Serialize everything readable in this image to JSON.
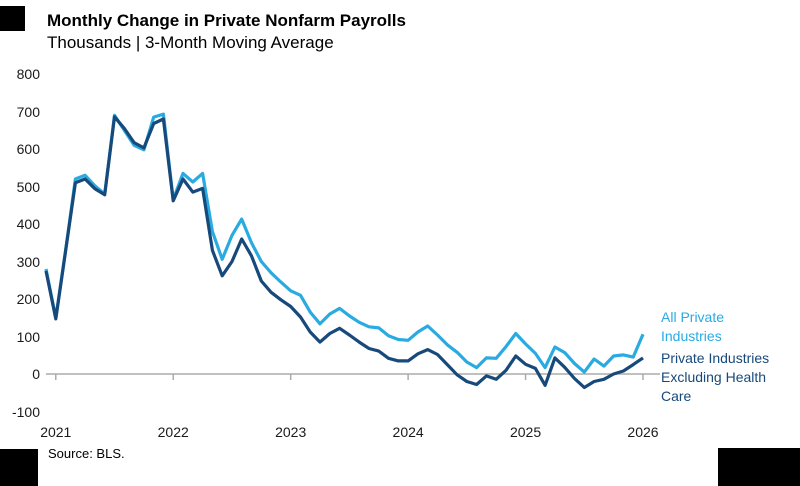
{
  "header": {
    "title": "Monthly Change in Private Nonfarm Payrolls",
    "subtitle": "Thousands | 3-Month Moving Average"
  },
  "source_note": "Source: BLS.",
  "colors": {
    "all_private": "#29ABE2",
    "ex_health": "#17497B",
    "axis_gray": "#ABABAB",
    "logo_block": "#000000"
  },
  "chart_data": {
    "type": "line",
    "title": "Monthly Change in Private Nonfarm Payrolls",
    "subtitle": "Thousands | 3-Month Moving Average",
    "xlabel": "",
    "ylabel": "Thousands",
    "ylim": [
      -100,
      800
    ],
    "y_ticks": [
      800,
      700,
      600,
      500,
      400,
      300,
      200,
      100,
      0,
      -100
    ],
    "x_tick_labels": [
      "2021",
      "2022",
      "2023",
      "2024",
      "2025",
      "2026"
    ],
    "grid": false,
    "legend_position": "right",
    "months": [
      "2020-12",
      "2021-01",
      "2021-02",
      "2021-03",
      "2021-04",
      "2021-05",
      "2021-06",
      "2021-07",
      "2021-08",
      "2021-09",
      "2021-10",
      "2021-11",
      "2021-12",
      "2022-01",
      "2022-02",
      "2022-03",
      "2022-04",
      "2022-05",
      "2022-06",
      "2022-07",
      "2022-08",
      "2022-09",
      "2022-10",
      "2022-11",
      "2022-12",
      "2023-01",
      "2023-02",
      "2023-03",
      "2023-04",
      "2023-05",
      "2023-06",
      "2023-07",
      "2023-08",
      "2023-09",
      "2023-10",
      "2023-11",
      "2023-12",
      "2024-01",
      "2024-02",
      "2024-03",
      "2024-04",
      "2024-05",
      "2024-06",
      "2024-07",
      "2024-08",
      "2024-09",
      "2024-10",
      "2024-11",
      "2024-12",
      "2025-01",
      "2025-02",
      "2025-03",
      "2025-04",
      "2025-05",
      "2025-06",
      "2025-07",
      "2025-08",
      "2025-09",
      "2025-10",
      "2025-11",
      "2025-12",
      "2026-01"
    ],
    "series": [
      {
        "name": "All Private Industries",
        "color": "#29ABE2",
        "values": [
          280,
          150,
          330,
          520,
          530,
          502,
          480,
          690,
          650,
          610,
          598,
          685,
          693,
          465,
          535,
          512,
          535,
          380,
          306,
          370,
          413,
          350,
          300,
          270,
          245,
          222,
          210,
          165,
          134,
          160,
          175,
          155,
          138,
          126,
          123,
          102,
          92,
          90,
          112,
          128,
          104,
          78,
          58,
          32,
          17,
          43,
          42,
          73,
          108,
          80,
          55,
          17,
          72,
          57,
          28,
          5,
          40,
          21,
          48,
          51,
          45,
          106
        ]
      },
      {
        "name": "Private Industries Excluding Health Care",
        "color": "#17497B",
        "values": [
          275,
          147,
          328,
          510,
          520,
          494,
          478,
          686,
          655,
          617,
          603,
          668,
          680,
          462,
          520,
          485,
          495,
          330,
          262,
          300,
          360,
          315,
          248,
          218,
          198,
          180,
          152,
          112,
          85,
          108,
          122,
          104,
          85,
          68,
          61,
          42,
          35,
          35,
          54,
          65,
          52,
          25,
          -2,
          -20,
          -28,
          -5,
          -14,
          10,
          48,
          26,
          15,
          -30,
          43,
          18,
          -12,
          -36,
          -20,
          -14,
          0,
          8,
          25,
          43
        ]
      }
    ]
  }
}
